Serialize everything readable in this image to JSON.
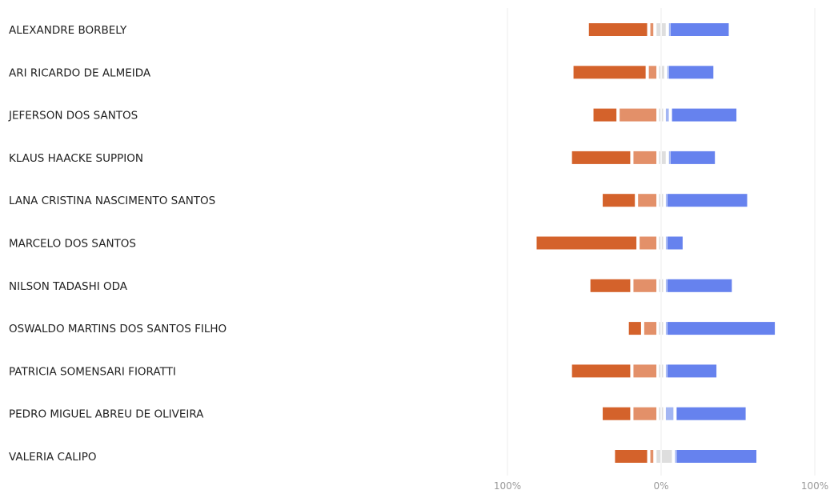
{
  "chart_data": {
    "type": "bar",
    "subtype": "diverging-stacked",
    "title": "",
    "xlabel": "",
    "ylabel": "",
    "xlim": [
      -100,
      100
    ],
    "x_ticks": [
      {
        "value": -100,
        "label": "100%"
      },
      {
        "value": 0,
        "label": "0%"
      },
      {
        "value": 100,
        "label": "100%"
      }
    ],
    "grid": true,
    "legend": "none",
    "categories": [
      "ALEXANDRE BORBELY",
      "ARI RICARDO DE ALMEIDA",
      "JEFERSON DOS SANTOS",
      "KLAUS HAACKE SUPPION",
      "LANA CRISTINA NASCIMENTO SANTOS",
      "MARCELO DOS SANTOS",
      "NILSON TADASHI ODA",
      "OSWALDO MARTINS DOS SANTOS FILHO",
      "PATRICIA SOMENSARI FIORATTI",
      "PEDRO MIGUEL ABREU DE OLIVEIRA",
      "VALERIA CALIPO"
    ],
    "series": [
      {
        "color": "#d4622b",
        "side": "negative",
        "values": [
          40,
          49,
          17,
          40,
          23,
          67,
          28,
          10,
          40,
          20,
          23
        ]
      },
      {
        "color": "#e39069",
        "side": "negative",
        "values": [
          4,
          7,
          26,
          17,
          14,
          13,
          17,
          10,
          17,
          17,
          4
        ]
      },
      {
        "color": "#dedede",
        "side": "negative",
        "values": [
          3,
          1,
          1,
          1,
          1,
          1,
          1,
          1,
          1,
          1,
          3
        ]
      },
      {
        "color": "#dedede",
        "side": "positive",
        "values": [
          3,
          2,
          1,
          3,
          1,
          1,
          1,
          1,
          1,
          1,
          7
        ]
      },
      {
        "color": "#a3b6f3",
        "side": "positive",
        "values": [
          1,
          1,
          4,
          1,
          1,
          1,
          1,
          1,
          1,
          7,
          1
        ]
      },
      {
        "color": "#6682ee",
        "side": "positive",
        "values": [
          40,
          31,
          44,
          31,
          54,
          12,
          44,
          72,
          34,
          47,
          54
        ]
      }
    ]
  }
}
